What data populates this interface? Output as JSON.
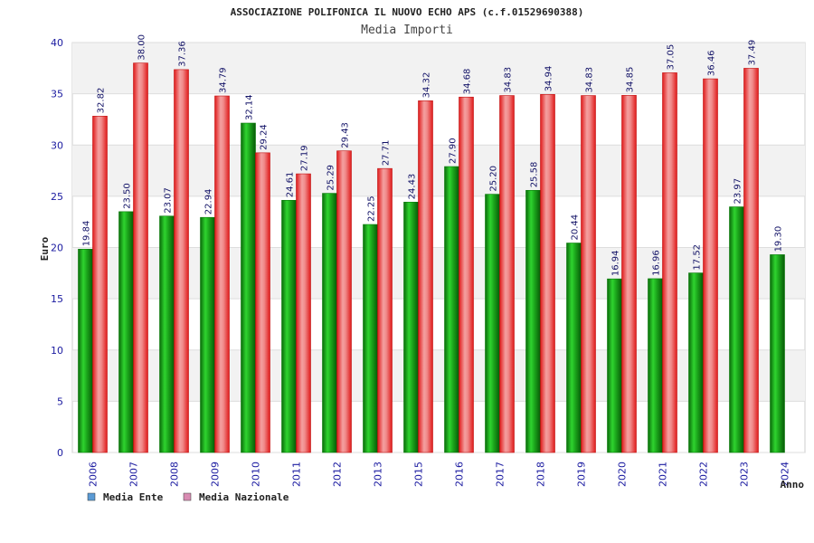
{
  "chart_data": {
    "type": "bar",
    "title": "ASSOCIAZIONE POLIFONICA IL NUOVO ECHO APS (c.f.01529690388)",
    "subtitle": "Media Importi",
    "ylabel": "Euro",
    "xlabel": "Anno",
    "ylim": [
      0,
      40
    ],
    "yticks": [
      "0",
      "5",
      "10",
      "15",
      "20",
      "25",
      "30",
      "35",
      "40"
    ],
    "categories": [
      "2006",
      "2007",
      "2008",
      "2009",
      "2010",
      "2011",
      "2012",
      "2013",
      "2015",
      "2016",
      "2017",
      "2018",
      "2019",
      "2020",
      "2021",
      "2022",
      "2023",
      "2024"
    ],
    "series": [
      {
        "name": "Media Ente",
        "color": "#1fa01f",
        "values": [
          19.84,
          23.5,
          23.07,
          22.94,
          32.14,
          24.61,
          25.29,
          22.25,
          24.43,
          27.9,
          25.2,
          25.58,
          20.44,
          16.94,
          16.96,
          17.52,
          23.97,
          19.3
        ],
        "labels": [
          "19.84",
          "23.50",
          "23.07",
          "22.94",
          "32.14",
          "24.61",
          "25.29",
          "22.25",
          "24.43",
          "27.90",
          "25.20",
          "25.58",
          "20.44",
          "16.94",
          "16.96",
          "17.52",
          "23.97",
          "19.30"
        ]
      },
      {
        "name": "Media Nazionale",
        "color": "#e01a1a",
        "values": [
          32.82,
          38.0,
          37.36,
          34.79,
          29.24,
          27.19,
          29.43,
          27.71,
          34.32,
          34.68,
          34.83,
          34.94,
          34.83,
          34.85,
          37.05,
          36.46,
          37.49,
          null
        ],
        "labels": [
          "32.82",
          "38.00",
          "37.36",
          "34.79",
          "29.24",
          "27.19",
          "29.43",
          "27.71",
          "34.32",
          "34.68",
          "34.83",
          "34.94",
          "34.83",
          "34.85",
          "37.05",
          "36.46",
          "37.49",
          null
        ]
      }
    ],
    "legend": {
      "position": "bottom-left",
      "items": [
        {
          "label": "Media Ente",
          "color": "#5b9bd5"
        },
        {
          "label": "Media Nazionale",
          "color": "#d98cb3"
        }
      ]
    },
    "grid": true
  }
}
